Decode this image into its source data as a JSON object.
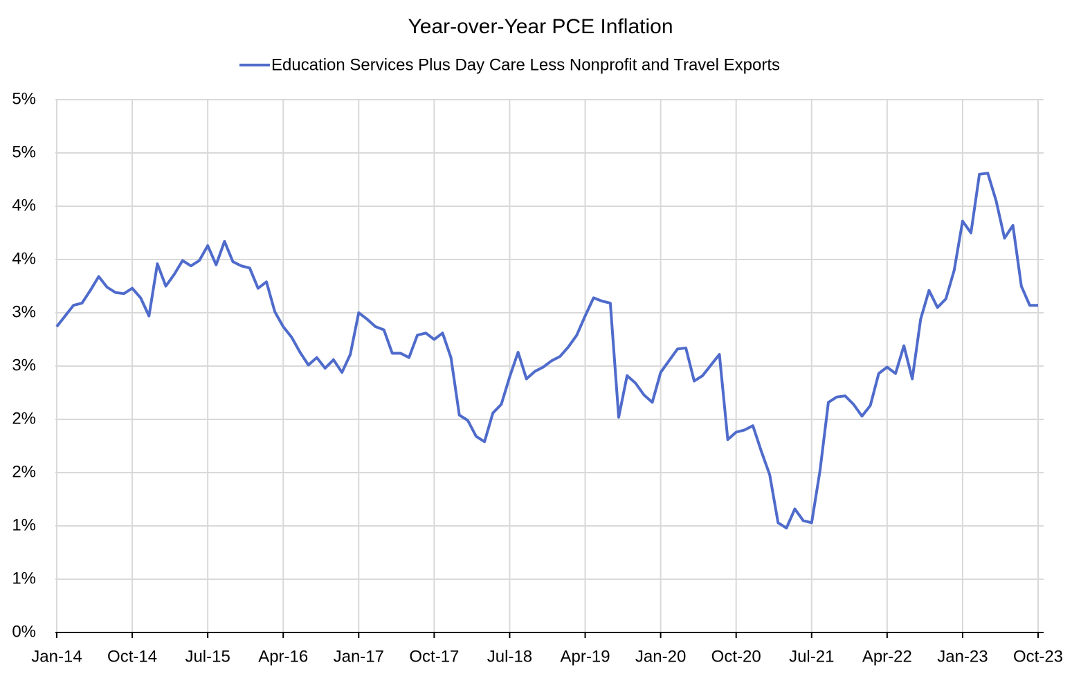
{
  "chart_data": {
    "type": "line",
    "title": "Year-over-Year PCE Inflation",
    "categories": [
      "Jan-14",
      null,
      null,
      null,
      null,
      null,
      null,
      null,
      null,
      "Oct-14",
      null,
      null,
      null,
      null,
      null,
      null,
      null,
      null,
      "Jul-15",
      null,
      null,
      null,
      null,
      null,
      null,
      null,
      null,
      "Apr-16",
      null,
      null,
      null,
      null,
      null,
      null,
      null,
      null,
      "Jan-17",
      null,
      null,
      null,
      null,
      null,
      null,
      null,
      null,
      "Oct-17",
      null,
      null,
      null,
      null,
      null,
      null,
      null,
      null,
      "Jul-18",
      null,
      null,
      null,
      null,
      null,
      null,
      null,
      null,
      "Apr-19",
      null,
      null,
      null,
      null,
      null,
      null,
      null,
      null,
      "Jan-20",
      null,
      null,
      null,
      null,
      null,
      null,
      null,
      null,
      "Oct-20",
      null,
      null,
      null,
      null,
      null,
      null,
      null,
      null,
      "Jul-21",
      null,
      null,
      null,
      null,
      null,
      null,
      null,
      null,
      "Apr-22",
      null,
      null,
      null,
      null,
      null,
      null,
      null,
      null,
      "Jan-23",
      null,
      null,
      null,
      null,
      null,
      null,
      null,
      null,
      "Oct-23"
    ],
    "series": [
      {
        "name": "Education Services Plus Day Care Less Nonprofit and Travel Exports",
        "color": "#4f6bcb",
        "values": [
          2.87,
          2.97,
          3.07,
          3.09,
          3.21,
          3.34,
          3.24,
          3.19,
          3.18,
          3.23,
          3.14,
          2.97,
          3.46,
          3.25,
          3.36,
          3.49,
          3.44,
          3.49,
          3.63,
          3.45,
          3.67,
          3.48,
          3.44,
          3.42,
          3.23,
          3.29,
          3.01,
          2.87,
          2.77,
          2.63,
          2.51,
          2.58,
          2.48,
          2.56,
          2.44,
          2.61,
          3.0,
          2.94,
          2.87,
          2.84,
          2.62,
          2.62,
          2.58,
          2.79,
          2.81,
          2.75,
          2.81,
          2.58,
          2.04,
          1.99,
          1.84,
          1.79,
          2.06,
          2.14,
          2.4,
          2.63,
          2.38,
          2.45,
          2.49,
          2.55,
          2.59,
          2.68,
          2.79,
          2.97,
          3.14,
          3.11,
          3.09,
          2.02,
          2.41,
          2.34,
          2.23,
          2.16,
          2.44,
          2.55,
          2.66,
          2.67,
          2.36,
          2.41,
          2.51,
          2.61,
          1.81,
          1.88,
          1.9,
          1.94,
          1.7,
          1.48,
          1.03,
          0.98,
          1.16,
          1.05,
          1.03,
          1.52,
          2.16,
          2.21,
          2.22,
          2.14,
          2.03,
          2.13,
          2.43,
          2.49,
          2.43,
          2.69,
          2.38,
          2.94,
          3.21,
          3.05,
          3.13,
          3.4,
          3.86,
          3.75,
          4.3,
          4.31,
          4.05,
          3.7,
          3.82,
          3.25,
          3.07,
          3.07
        ]
      }
    ],
    "ylim": [
      0,
      5
    ],
    "yticks": [
      {
        "value": 0,
        "label": "0%"
      },
      {
        "value": 0.5,
        "label": "1%"
      },
      {
        "value": 1,
        "label": "1%"
      },
      {
        "value": 1.5,
        "label": "2%"
      },
      {
        "value": 2,
        "label": "2%"
      },
      {
        "value": 2.5,
        "label": "3%"
      },
      {
        "value": 3,
        "label": "3%"
      },
      {
        "value": 3.5,
        "label": "4%"
      },
      {
        "value": 4,
        "label": "4%"
      },
      {
        "value": 4.5,
        "label": "5%"
      },
      {
        "value": 5,
        "label": "5%"
      }
    ],
    "grid": true,
    "legend": "top"
  }
}
